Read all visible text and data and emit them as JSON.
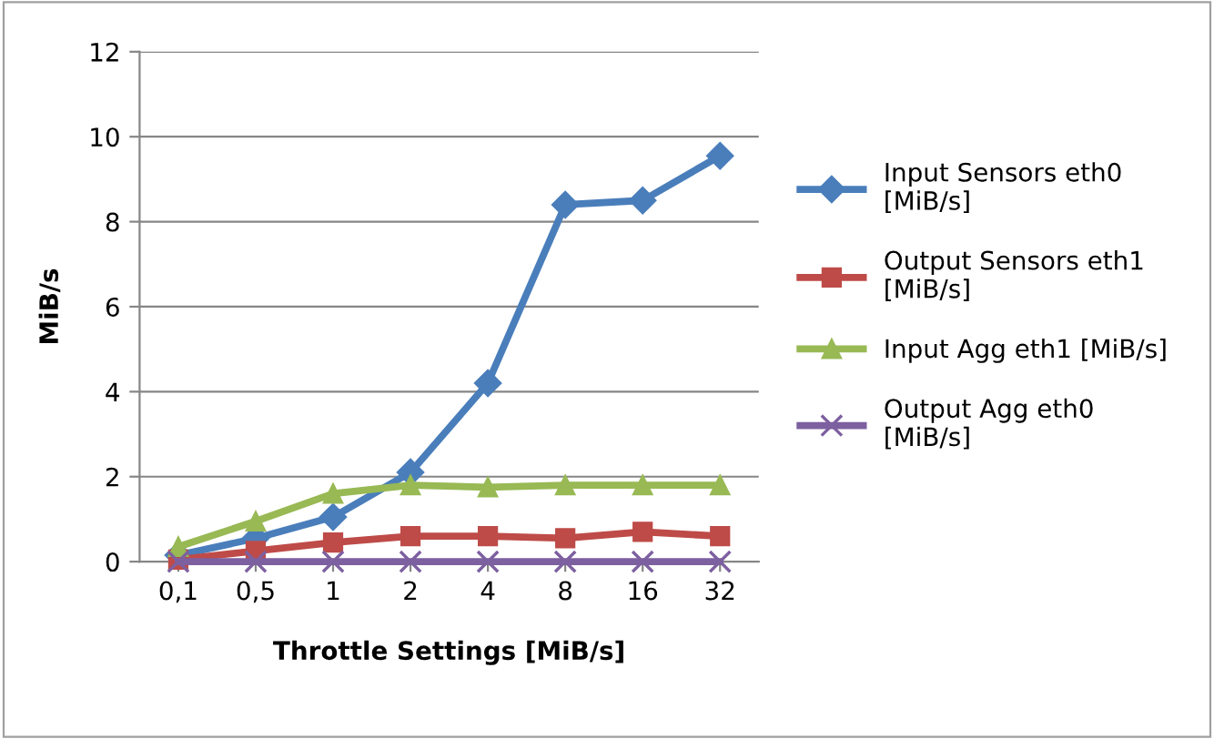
{
  "chart_data": {
    "type": "line",
    "xlabel": "Throttle Settings [MiB/s]",
    "ylabel": "MiB/s",
    "categories": [
      "0,1",
      "0,5",
      "1",
      "2",
      "4",
      "8",
      "16",
      "32"
    ],
    "series": [
      {
        "name": "Input Sensors eth0 [MiB/s]",
        "color": "#4a7ebb",
        "marker": "diamond",
        "values": [
          0.15,
          0.55,
          1.05,
          2.1,
          4.2,
          8.4,
          8.5,
          9.55
        ]
      },
      {
        "name": "Output Sensors eth1 [MiB/s]",
        "color": "#be4b48",
        "marker": "square",
        "values": [
          0.05,
          0.25,
          0.45,
          0.6,
          0.6,
          0.55,
          0.7,
          0.6
        ]
      },
      {
        "name": "Input Agg eth1 [MiB/s]",
        "color": "#98b954",
        "marker": "triangle",
        "values": [
          0.35,
          0.95,
          1.6,
          1.8,
          1.75,
          1.8,
          1.8,
          1.8
        ]
      },
      {
        "name": "Output Agg eth0 [MiB/s]",
        "color": "#7d60a0",
        "marker": "cross",
        "values": [
          0,
          0,
          0,
          0,
          0,
          0,
          0,
          0
        ]
      }
    ],
    "ylim": [
      0,
      12
    ],
    "yticks": [
      0,
      2,
      4,
      6,
      8,
      10,
      12
    ],
    "grid": "y",
    "legend": "right"
  }
}
